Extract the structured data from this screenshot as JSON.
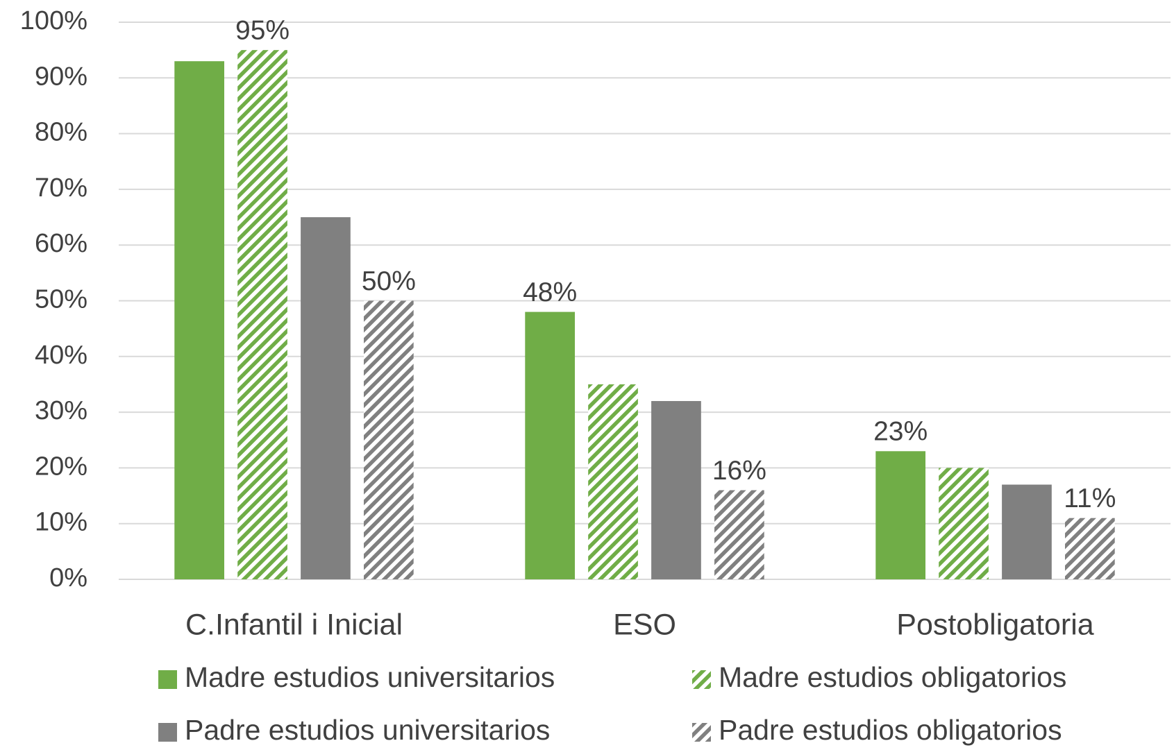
{
  "chart_data": {
    "type": "bar",
    "categories": [
      "C.Infantil i Inicial",
      "ESO",
      "Postobligatoria"
    ],
    "series": [
      {
        "name": "Madre estudios universitarios",
        "color": "#70ad47",
        "pattern": "solid",
        "values": [
          93,
          48,
          23
        ],
        "value_labels": [
          null,
          "48%",
          "23%"
        ]
      },
      {
        "name": "Madre estudios obligatorios",
        "color": "#70ad47",
        "pattern": "hatch",
        "values": [
          95,
          35,
          20
        ],
        "value_labels": [
          "95%",
          null,
          null
        ]
      },
      {
        "name": "Padre estudios universitarios",
        "color": "#808080",
        "pattern": "solid",
        "values": [
          65,
          32,
          17
        ],
        "value_labels": [
          null,
          null,
          null
        ]
      },
      {
        "name": "Padre estudios obligatorios",
        "color": "#808080",
        "pattern": "hatch",
        "values": [
          50,
          16,
          11
        ],
        "value_labels": [
          "50%",
          "16%",
          "11%"
        ]
      }
    ],
    "ylim": [
      0,
      100
    ],
    "yticks": [
      {
        "value": 0,
        "label": "0%"
      },
      {
        "value": 10,
        "label": "10%"
      },
      {
        "value": 20,
        "label": "20%"
      },
      {
        "value": 30,
        "label": "30%"
      },
      {
        "value": 40,
        "label": "40%"
      },
      {
        "value": 50,
        "label": "50%"
      },
      {
        "value": 60,
        "label": "60%"
      },
      {
        "value": 70,
        "label": "70%"
      },
      {
        "value": 80,
        "label": "80%"
      },
      {
        "value": 90,
        "label": "90%"
      },
      {
        "value": 100,
        "label": "100%"
      }
    ],
    "grid": true,
    "legend": "bottom"
  }
}
